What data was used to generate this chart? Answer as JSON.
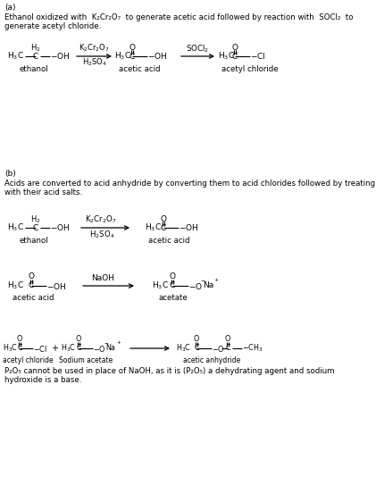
{
  "bg_color": "#ffffff",
  "fig_width": 4.21,
  "fig_height": 5.43,
  "dpi": 100,
  "section_a_label": "(a)",
  "section_a_desc1": "Ethanol oxidized with  K₂Cr₂O₇  to generate acetic acid followed by reaction with  SOCl₂  to",
  "section_a_desc2": "generate acetyl chloride.",
  "section_b_label": "(b)",
  "section_b_desc1": "Acids are converted to acid anhydride by converting them to acid chlorides followed by treating",
  "section_b_desc2": "with their acid salts.",
  "footer1": "P₂O₅ cannot be used in place of NaOH, as it is (P₂O₅) a dehydrating agent and sodium",
  "footer2": "hydroxide is a base."
}
